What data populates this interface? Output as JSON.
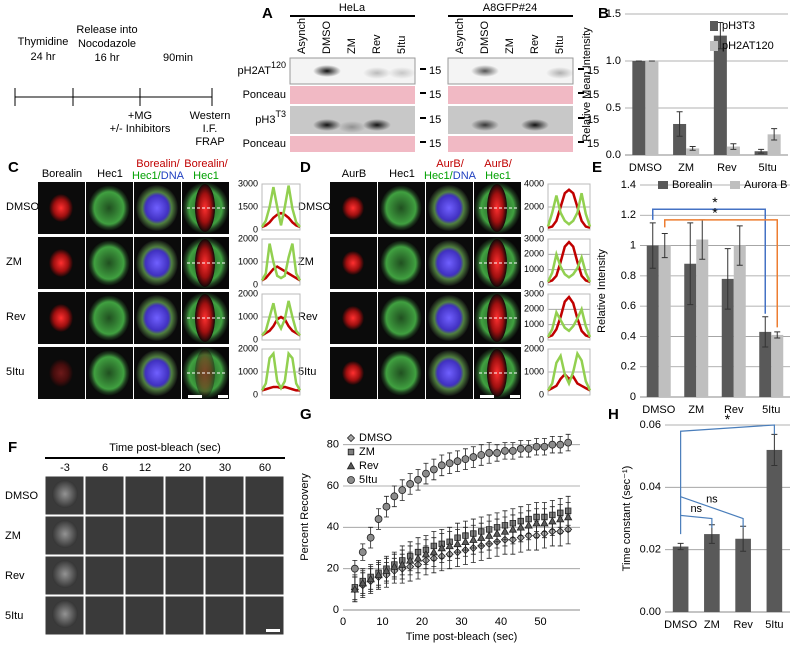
{
  "panel_labels": [
    "A",
    "B",
    "C",
    "D",
    "E",
    "F",
    "G",
    "H"
  ],
  "timeline": {
    "labels": [
      "Thymidine",
      "24 hr",
      "Release into",
      "Nocodazole",
      "16 hr",
      "90min",
      "+MG",
      "+/- Inhibitors",
      "Western",
      "I.F.",
      "FRAP"
    ]
  },
  "blot": {
    "cell_lines": [
      "HeLa",
      "A8GFP#24"
    ],
    "lanes": [
      "Asynch",
      "DMSO",
      "ZM",
      "Rev",
      "5Itu"
    ],
    "rows": [
      {
        "label": "pH2AT",
        "sup": "120"
      },
      {
        "label": "Ponceau"
      },
      {
        "label": "pH3",
        "sup": "T3"
      },
      {
        "label": "Ponceau"
      }
    ],
    "marker": "15"
  },
  "panel_c": {
    "headers": [
      [
        [
          {
            "text": "Borealin",
            "color": "#000000"
          }
        ]
      ],
      [
        [
          {
            "text": "Hec1",
            "color": "#000000"
          }
        ]
      ],
      [
        [
          {
            "text": "Borealin/",
            "color": "#c00000"
          }
        ],
        [
          {
            "text": "Hec1/",
            "color": "#00a000"
          },
          {
            "text": "DNA",
            "color": "#2040c0"
          }
        ]
      ],
      [
        [
          {
            "text": "Borealin/",
            "color": "#c00000"
          }
        ],
        [
          {
            "text": "Hec1",
            "color": "#00a000"
          }
        ]
      ]
    ],
    "rows": [
      "DMSO",
      "ZM",
      "Rev",
      "5Itu"
    ]
  },
  "panel_d": {
    "headers": [
      [
        [
          {
            "text": "AurB",
            "color": "#000000"
          }
        ]
      ],
      [
        [
          {
            "text": "Hec1",
            "color": "#000000"
          }
        ]
      ],
      [
        [
          {
            "text": "AurB/",
            "color": "#c00000"
          }
        ],
        [
          {
            "text": "Hec1/",
            "color": "#00a000"
          },
          {
            "text": "DNA",
            "color": "#2040c0"
          }
        ]
      ],
      [
        [
          {
            "text": "AurB/",
            "color": "#c00000"
          }
        ],
        [
          {
            "text": "Hec1",
            "color": "#00a000"
          }
        ]
      ]
    ],
    "rows": [
      "DMSO",
      "ZM",
      "Rev",
      "5Itu"
    ]
  },
  "panel_f": {
    "title": "Time post-bleach (sec)",
    "columns": [
      "-3",
      "6",
      "12",
      "20",
      "30",
      "60"
    ],
    "rows": [
      "DMSO",
      "ZM",
      "Rev",
      "5Itu"
    ]
  },
  "chart_data": [
    {
      "type": "bar",
      "ylabel": "Relative Mean Intensity",
      "categories": [
        "DMSO",
        "ZM",
        "Rev",
        "5Itu"
      ],
      "ylim": [
        0,
        1.5
      ],
      "yticks": [
        {
          "value": 0,
          "label": "0.0"
        },
        {
          "value": 0.5,
          "label": "0.5"
        },
        {
          "value": 1,
          "label": "1.0"
        },
        {
          "value": 1.5,
          "label": "1.5"
        }
      ],
      "grid": true,
      "legend": "upper-right",
      "series": [
        {
          "name": "pH3T3",
          "color": "#595959",
          "values": [
            1,
            0.33,
            1.27,
            0.04
          ],
          "errors": [
            0,
            0.13,
            0.14,
            0.02
          ]
        },
        {
          "name": "pH2AT120",
          "color": "#bfbfbf",
          "values": [
            1,
            0.07,
            0.09,
            0.22
          ],
          "errors": [
            0,
            0.02,
            0.03,
            0.06
          ]
        }
      ]
    },
    {
      "type": "line",
      "ylim": [
        0,
        3000
      ],
      "yticks": [
        0,
        1500,
        3000
      ],
      "grid": true,
      "series": [
        {
          "color": "#c00000",
          "values": [
            200,
            300,
            500,
            800,
            1000,
            1100,
            1000,
            800,
            500,
            300,
            200
          ]
        },
        {
          "color": "#92d050",
          "values": [
            200,
            600,
            1500,
            2800,
            1500,
            300,
            1500,
            2900,
            1400,
            500,
            200
          ]
        }
      ]
    },
    {
      "type": "line",
      "ylim": [
        0,
        2000
      ],
      "yticks": [
        0,
        1000,
        2000
      ],
      "grid": true,
      "series": [
        {
          "color": "#c00000",
          "values": [
            200,
            300,
            500,
            700,
            800,
            700,
            600,
            500,
            400,
            300,
            200
          ]
        },
        {
          "color": "#92d050",
          "values": [
            200,
            500,
            1800,
            1000,
            400,
            300,
            400,
            1200,
            1800,
            500,
            200
          ]
        }
      ]
    },
    {
      "type": "line",
      "ylim": [
        0,
        2000
      ],
      "yticks": [
        0,
        1000,
        2000
      ],
      "grid": true,
      "series": [
        {
          "color": "#c00000",
          "values": [
            200,
            300,
            400,
            600,
            900,
            1000,
            900,
            600,
            400,
            300,
            200
          ]
        },
        {
          "color": "#92d050",
          "values": [
            200,
            400,
            1000,
            1600,
            800,
            500,
            900,
            1700,
            1000,
            400,
            200
          ]
        }
      ]
    },
    {
      "type": "line",
      "ylim": [
        0,
        2000
      ],
      "yticks": [
        0,
        1000,
        2000
      ],
      "grid": true,
      "series": [
        {
          "color": "#c00000",
          "values": [
            200,
            250,
            300,
            350,
            350,
            300,
            350,
            300,
            250,
            200,
            200
          ]
        },
        {
          "color": "#92d050",
          "values": [
            200,
            500,
            1600,
            1800,
            600,
            300,
            600,
            1800,
            1600,
            500,
            200
          ]
        }
      ]
    },
    {
      "type": "line",
      "ylim": [
        0,
        4000
      ],
      "yticks": [
        0,
        2000,
        4000
      ],
      "grid": true,
      "series": [
        {
          "color": "#c00000",
          "values": [
            200,
            300,
            800,
            2000,
            3200,
            3500,
            3200,
            2000,
            800,
            300,
            200
          ]
        },
        {
          "color": "#92d050",
          "values": [
            300,
            1500,
            3000,
            1500,
            800,
            500,
            800,
            1500,
            3200,
            1400,
            300
          ]
        }
      ]
    },
    {
      "type": "line",
      "ylim": [
        0,
        3000
      ],
      "yticks": [
        0,
        1000,
        2000,
        3000
      ],
      "grid": true,
      "series": [
        {
          "color": "#c00000",
          "values": [
            200,
            300,
            600,
            1500,
            2500,
            2800,
            2500,
            1500,
            600,
            300,
            200
          ]
        },
        {
          "color": "#92d050",
          "values": [
            200,
            800,
            2000,
            1200,
            700,
            500,
            700,
            1100,
            1800,
            800,
            200
          ]
        }
      ]
    },
    {
      "type": "line",
      "ylim": [
        0,
        3000
      ],
      "yticks": [
        0,
        1000,
        2000,
        3000
      ],
      "grid": true,
      "series": [
        {
          "color": "#c00000",
          "values": [
            200,
            300,
            700,
            1500,
            2500,
            2800,
            2400,
            1400,
            600,
            300,
            200
          ]
        },
        {
          "color": "#92d050",
          "values": [
            200,
            700,
            1800,
            1300,
            800,
            600,
            900,
            1400,
            2000,
            900,
            200
          ]
        }
      ]
    },
    {
      "type": "line",
      "ylim": [
        0,
        2000
      ],
      "yticks": [
        0,
        1000,
        2000
      ],
      "grid": true,
      "series": [
        {
          "color": "#c00000",
          "values": [
            200,
            300,
            400,
            700,
            900,
            700,
            800,
            500,
            400,
            300,
            200
          ]
        },
        {
          "color": "#92d050",
          "values": [
            200,
            500,
            1400,
            1700,
            900,
            500,
            1000,
            1800,
            1500,
            600,
            200
          ]
        }
      ]
    },
    {
      "type": "bar",
      "ylabel": "Relative Intensity",
      "categories": [
        "DMSO",
        "ZM",
        "Rev",
        "5Itu"
      ],
      "ylim": [
        0,
        1.4
      ],
      "yticks": [
        0,
        0.2,
        0.4,
        0.6,
        0.8,
        1,
        1.2,
        1.4
      ],
      "grid": true,
      "legend": "top",
      "annotations": [
        "*",
        "*"
      ],
      "series": [
        {
          "name": "Borealin",
          "color": "#595959",
          "values": [
            1,
            0.88,
            0.78,
            0.43
          ],
          "errors": [
            0.15,
            0.27,
            0.2,
            0.1
          ]
        },
        {
          "name": "Aurora B",
          "color": "#bfbfbf",
          "values": [
            1,
            1.04,
            1,
            0.41
          ],
          "errors": [
            0.08,
            0.13,
            0.13,
            0.02
          ]
        }
      ]
    },
    {
      "type": "scatter",
      "xlabel": "Time post-bleach (sec)",
      "ylabel": "Percent Recovery",
      "xlim": [
        0,
        60
      ],
      "xticks": [
        0,
        10,
        20,
        30,
        40,
        50
      ],
      "ylim": [
        0,
        90
      ],
      "yticks": [
        0,
        20,
        40,
        60,
        80
      ],
      "grid": true,
      "legend": "upper-left",
      "x": [
        3,
        5,
        7,
        9,
        11,
        13,
        15,
        17,
        19,
        21,
        23,
        25,
        27,
        29,
        31,
        33,
        35,
        37,
        39,
        41,
        43,
        45,
        47,
        49,
        51,
        53,
        55,
        57
      ],
      "series": [
        {
          "name": "DMSO",
          "marker": "diamond",
          "color": "#a6a6a6",
          "values": [
            10,
            12,
            14,
            16,
            17,
            19,
            20,
            21,
            22,
            24,
            25,
            26,
            27,
            28,
            29,
            30,
            31,
            32,
            33,
            34,
            34,
            35,
            36,
            36,
            37,
            38,
            38,
            39
          ],
          "errors": [
            6,
            6,
            6,
            6,
            6,
            6,
            7,
            7,
            7,
            7,
            7,
            7,
            7,
            7,
            7,
            7,
            7,
            7,
            7,
            7,
            7,
            7,
            7,
            7,
            7,
            7,
            7,
            7
          ]
        },
        {
          "name": "ZM",
          "marker": "square",
          "color": "#7f7f7f",
          "values": [
            11,
            14,
            16,
            18,
            20,
            22,
            24,
            26,
            28,
            29,
            31,
            32,
            33,
            35,
            36,
            37,
            38,
            39,
            40,
            41,
            42,
            43,
            44,
            45,
            45,
            46,
            47,
            48
          ],
          "errors": [
            6,
            6,
            6,
            6,
            6,
            6,
            7,
            7,
            7,
            7,
            7,
            7,
            7,
            7,
            7,
            7,
            7,
            7,
            7,
            7,
            7,
            7,
            7,
            7,
            7,
            7,
            7,
            7
          ]
        },
        {
          "name": "Rev",
          "marker": "triangle",
          "color": "#595959",
          "values": [
            10,
            13,
            15,
            17,
            19,
            21,
            22,
            24,
            25,
            27,
            28,
            30,
            31,
            32,
            33,
            34,
            35,
            36,
            37,
            38,
            39,
            40,
            41,
            42,
            42,
            43,
            44,
            45
          ],
          "errors": [
            6,
            6,
            6,
            6,
            6,
            6,
            7,
            7,
            7,
            7,
            7,
            7,
            7,
            7,
            7,
            7,
            7,
            7,
            7,
            7,
            7,
            7,
            7,
            7,
            7,
            7,
            7,
            7
          ]
        },
        {
          "name": "5Itu",
          "marker": "circle",
          "color": "#8c8c8c",
          "values": [
            20,
            28,
            35,
            44,
            50,
            55,
            58,
            61,
            63,
            66,
            68,
            70,
            71,
            72,
            73,
            74,
            75,
            76,
            76,
            77,
            77,
            78,
            78,
            79,
            79,
            80,
            80,
            81
          ],
          "errors": [
            4,
            4,
            5,
            5,
            5,
            5,
            5,
            5,
            5,
            5,
            5,
            5,
            5,
            5,
            5,
            5,
            5,
            5,
            4,
            4,
            4,
            4,
            4,
            4,
            4,
            4,
            4,
            4
          ]
        }
      ]
    },
    {
      "type": "bar",
      "ylabel": "Time constant (sec⁻¹)",
      "categories": [
        "DMSO",
        "ZM",
        "Rev",
        "5Itu"
      ],
      "ylim": [
        0,
        0.06
      ],
      "yticks": [
        {
          "value": 0,
          "label": "0.00"
        },
        {
          "value": 0.02,
          "label": "0.02"
        },
        {
          "value": 0.04,
          "label": "0.04"
        },
        {
          "value": 0.06,
          "label": "0.06"
        }
      ],
      "grid": true,
      "annotations": [
        "ns",
        "ns",
        "*"
      ],
      "series": [
        {
          "color": "#595959",
          "values": [
            0.021,
            0.025,
            0.0235,
            0.052
          ],
          "errors": [
            0.001,
            0.003,
            0.004,
            0.005
          ]
        }
      ]
    }
  ]
}
